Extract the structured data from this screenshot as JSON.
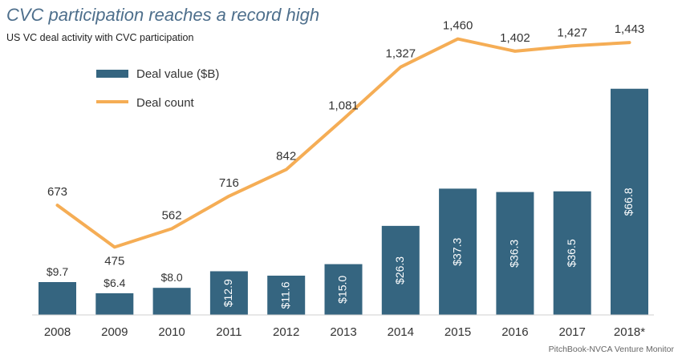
{
  "chart_data": {
    "type": "bar",
    "title": "CVC participation reaches a record high",
    "subtitle": "US VC deal activity with CVC participation",
    "source": "PitchBook-NVCA Venture Monitor",
    "categories": [
      "2008",
      "2009",
      "2010",
      "2011",
      "2012",
      "2013",
      "2014",
      "2015",
      "2016",
      "2017",
      "2018*"
    ],
    "series": [
      {
        "name": "Deal value ($B)",
        "type": "bar",
        "color": "#356580",
        "axis": "left",
        "values": [
          9.7,
          6.4,
          8.0,
          12.9,
          11.6,
          15.0,
          26.3,
          37.3,
          36.3,
          36.5,
          66.8
        ],
        "labels": [
          "$9.7",
          "$6.4",
          "$8.0",
          "$12.9",
          "$11.6",
          "$15.0",
          "$26.3",
          "$37.3",
          "$36.3",
          "$36.5",
          "$66.8"
        ]
      },
      {
        "name": "Deal count",
        "type": "line",
        "color": "#f5ad55",
        "axis": "right",
        "values": [
          673,
          475,
          562,
          716,
          842,
          1081,
          1327,
          1460,
          1402,
          1427,
          1443
        ],
        "labels": [
          "673",
          "475",
          "562",
          "716",
          "842",
          "1,081",
          "1,327",
          "1,460",
          "1,402",
          "1,427",
          "1,443"
        ]
      }
    ],
    "legend": "top-left",
    "grid": false,
    "ylim_left": [
      0,
      80
    ],
    "ylim_right": [
      0,
      1600
    ]
  }
}
